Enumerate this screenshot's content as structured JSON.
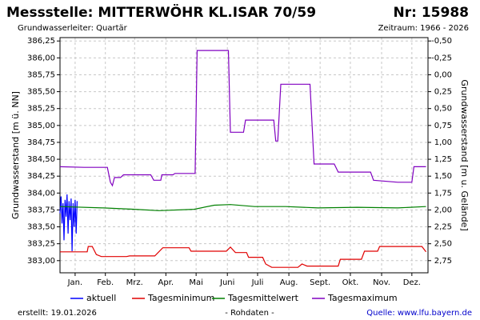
{
  "chart_data": {
    "type": "line",
    "title": "Messstelle: MITTERWÖHR KL.ISAR 70/59",
    "number": "Nr: 15988",
    "subtitle": "Grundwasserleiter: Quartär",
    "period": "Zeitraum: 1966 - 2026",
    "ylabel": "Grundwasserstand [m ü. NN]",
    "y2label": "Grundwasserstand [m u. Gelände]",
    "created": "erstellt:  19.01.2026",
    "note": "- Rohdaten -",
    "source": "Quelle: www.lfu.bayern.de",
    "grid": true,
    "xlim": [
      0,
      365
    ],
    "xticks": [
      {
        "value": 15,
        "label": "Jan."
      },
      {
        "value": 45,
        "label": "Feb."
      },
      {
        "value": 74,
        "label": "Mrz."
      },
      {
        "value": 105,
        "label": "Apr."
      },
      {
        "value": 135,
        "label": "Mai"
      },
      {
        "value": 166,
        "label": "Juni"
      },
      {
        "value": 196,
        "label": "Juli"
      },
      {
        "value": 227,
        "label": "Aug."
      },
      {
        "value": 258,
        "label": "Sept."
      },
      {
        "value": 288,
        "label": "Okt."
      },
      {
        "value": 319,
        "label": "Nov."
      },
      {
        "value": 349,
        "label": "Dez."
      }
    ],
    "ylim": [
      382.82,
      386.3
    ],
    "yticks": [
      {
        "value": 383,
        "label": "383,00"
      },
      {
        "value": 383.25,
        "label": "383,25"
      },
      {
        "value": 383.5,
        "label": "383,50"
      },
      {
        "value": 383.75,
        "label": "383,75"
      },
      {
        "value": 384,
        "label": "384,00"
      },
      {
        "value": 384.25,
        "label": "384,25"
      },
      {
        "value": 384.5,
        "label": "384,50"
      },
      {
        "value": 384.75,
        "label": "384,75"
      },
      {
        "value": 385,
        "label": "385,00"
      },
      {
        "value": 385.25,
        "label": "385,25"
      },
      {
        "value": 385.5,
        "label": "385,50"
      },
      {
        "value": 385.75,
        "label": "385,75"
      },
      {
        "value": 386,
        "label": "386,00"
      },
      {
        "value": 386.25,
        "label": "386,25"
      }
    ],
    "y2lim": [
      2.93,
      -0.55
    ],
    "y2ticks": [
      {
        "value": -0.5,
        "label": "-0,50"
      },
      {
        "value": -0.25,
        "label": "-0,25"
      },
      {
        "value": 0,
        "label": "0,00"
      },
      {
        "value": 0.25,
        "label": "0,25"
      },
      {
        "value": 0.5,
        "label": "0,50"
      },
      {
        "value": 0.75,
        "label": "0,75"
      },
      {
        "value": 1,
        "label": "1,00"
      },
      {
        "value": 1.25,
        "label": "1,25"
      },
      {
        "value": 1.5,
        "label": "1,50"
      },
      {
        "value": 1.75,
        "label": "1,75"
      },
      {
        "value": 2,
        "label": "2,00"
      },
      {
        "value": 2.25,
        "label": "2,25"
      },
      {
        "value": 2.5,
        "label": "2,50"
      },
      {
        "value": 2.75,
        "label": "2,75"
      }
    ],
    "series": [
      {
        "name": "aktuell",
        "color": "#0000ff",
        "x": [
          0,
          1,
          2,
          3,
          4,
          5,
          6,
          7,
          8,
          9,
          10,
          11,
          12,
          13,
          14,
          15,
          16,
          17
        ],
        "values": [
          383.7,
          383.95,
          383.55,
          383.85,
          383.3,
          383.9,
          383.65,
          383.98,
          383.4,
          383.88,
          383.6,
          383.92,
          383.14,
          383.85,
          383.5,
          383.9,
          383.4,
          383.88
        ]
      },
      {
        "name": "Tagesminimum",
        "color": "#e00000",
        "x": [
          0,
          27,
          28,
          32,
          36,
          41,
          66,
          69,
          94,
          102,
          128,
          130,
          165,
          169,
          174,
          185,
          187,
          201,
          204,
          210,
          236,
          240,
          245,
          276,
          278,
          299,
          302,
          315,
          317,
          359,
          363
        ],
        "values": [
          383.13,
          383.13,
          383.21,
          383.21,
          383.09,
          383.06,
          383.06,
          383.07,
          383.07,
          383.19,
          383.19,
          383.14,
          383.14,
          383.2,
          383.12,
          383.12,
          383.05,
          383.05,
          382.95,
          382.9,
          382.9,
          382.95,
          382.92,
          382.92,
          383.02,
          383.02,
          383.14,
          383.14,
          383.21,
          383.21,
          383.13
        ]
      },
      {
        "name": "Tagesmittelwert",
        "color": "#008000",
        "x": [
          0,
          43,
          74,
          98,
          133,
          153,
          169,
          193,
          224,
          256,
          295,
          335,
          363
        ],
        "values": [
          383.8,
          383.78,
          383.76,
          383.74,
          383.76,
          383.82,
          383.83,
          383.8,
          383.8,
          383.78,
          383.79,
          383.78,
          383.8
        ]
      },
      {
        "name": "Tagesmaximum",
        "color": "#8000c0",
        "x": [
          0,
          24,
          47,
          50,
          52,
          54,
          60,
          63,
          90,
          93,
          100,
          101,
          112,
          114,
          134,
          136,
          167,
          169,
          182,
          184,
          212,
          214,
          216,
          219,
          248,
          252,
          272,
          276,
          308,
          311,
          335,
          349,
          351,
          363
        ],
        "values": [
          384.39,
          384.38,
          384.38,
          384.16,
          384.11,
          384.23,
          384.23,
          384.27,
          384.27,
          384.19,
          384.19,
          384.27,
          384.27,
          384.29,
          384.29,
          386.11,
          386.11,
          384.9,
          384.9,
          385.08,
          385.08,
          384.77,
          384.77,
          385.61,
          385.61,
          384.43,
          384.43,
          384.31,
          384.31,
          384.19,
          384.16,
          384.16,
          384.39,
          384.39
        ]
      }
    ]
  }
}
